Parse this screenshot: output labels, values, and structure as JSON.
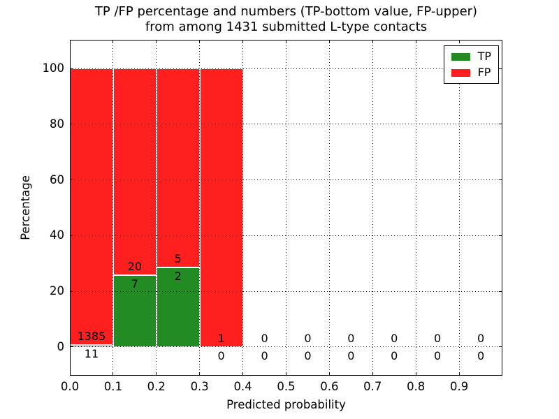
{
  "chart_data": {
    "type": "bar",
    "stacked": true,
    "title_line1": "TP /FP percentage and numbers (TP-bottom value, FP-upper)",
    "title_line2": "from among 1431 submitted L-type contacts",
    "xlabel": "Predicted probability",
    "ylabel": "Percentage",
    "xlim": [
      0.0,
      1.0
    ],
    "ylim": [
      -10.3,
      110.3
    ],
    "xtick_values": [
      0.0,
      0.1,
      0.2,
      0.3,
      0.4,
      0.5,
      0.6,
      0.7,
      0.8,
      0.9
    ],
    "xtick_labels": [
      "0.0",
      "0.1",
      "0.2",
      "0.3",
      "0.4",
      "0.5",
      "0.6",
      "0.7",
      "0.8",
      "0.9"
    ],
    "ytick_values": [
      0,
      20,
      40,
      60,
      80,
      100
    ],
    "ytick_labels": [
      "0",
      "20",
      "40",
      "60",
      "80",
      "100"
    ],
    "grid_style": "dotted",
    "bar_edge_color": "#ffffff",
    "series_colors": {
      "tp": "#228b22",
      "fp": "#ff1f1f"
    },
    "legend": {
      "position": "upper right",
      "entries": [
        {
          "label": "TP",
          "color": "#228b22"
        },
        {
          "label": "FP",
          "color": "#ff1f1f"
        }
      ]
    },
    "bins": [
      {
        "range": [
          0.0,
          0.1
        ],
        "tp": 11,
        "fp": 1385
      },
      {
        "range": [
          0.1,
          0.2
        ],
        "tp": 7,
        "fp": 20
      },
      {
        "range": [
          0.2,
          0.3
        ],
        "tp": 2,
        "fp": 5
      },
      {
        "range": [
          0.3,
          0.4
        ],
        "tp": 0,
        "fp": 1
      },
      {
        "range": [
          0.4,
          0.5
        ],
        "tp": 0,
        "fp": 0
      },
      {
        "range": [
          0.5,
          0.6
        ],
        "tp": 0,
        "fp": 0
      },
      {
        "range": [
          0.6,
          0.7
        ],
        "tp": 0,
        "fp": 0
      },
      {
        "range": [
          0.7,
          0.8
        ],
        "tp": 0,
        "fp": 0
      },
      {
        "range": [
          0.8,
          0.9
        ],
        "tp": 0,
        "fp": 0
      },
      {
        "range": [
          0.9,
          1.0
        ],
        "tp": 0,
        "fp": 0
      }
    ]
  }
}
